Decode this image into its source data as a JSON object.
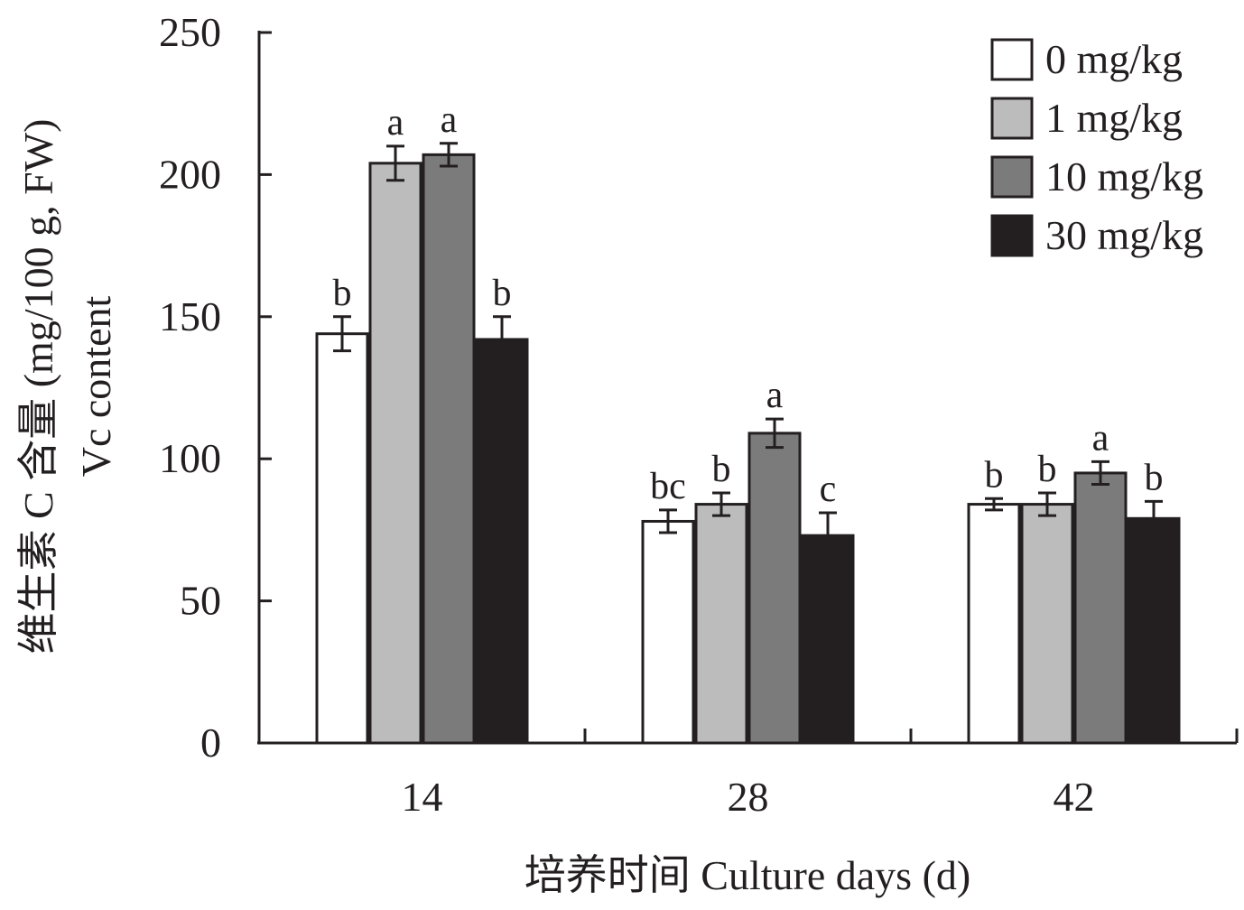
{
  "chart_data": {
    "type": "bar",
    "categories": [
      "14",
      "28",
      "42"
    ],
    "series": [
      {
        "name": "0 mg/kg",
        "color": "#ffffff",
        "values": [
          144,
          78,
          84
        ],
        "errors": [
          6,
          4,
          2
        ],
        "letters": [
          "b",
          "bc",
          "b"
        ]
      },
      {
        "name": "1 mg/kg",
        "color": "#bcbcbc",
        "values": [
          204,
          84,
          84
        ],
        "errors": [
          6,
          4,
          4
        ],
        "letters": [
          "a",
          "b",
          "b"
        ]
      },
      {
        "name": "10 mg/kg",
        "color": "#7b7b7b",
        "values": [
          207,
          109,
          95
        ],
        "errors": [
          4,
          5,
          4
        ],
        "letters": [
          "a",
          "a",
          "a"
        ]
      },
      {
        "name": "30 mg/kg",
        "color": "#231f20",
        "values": [
          142,
          73,
          79
        ],
        "errors": [
          8,
          8,
          6
        ],
        "letters": [
          "b",
          "c",
          "b"
        ]
      }
    ],
    "ylim": [
      0,
      250
    ],
    "yticks": [
      0,
      50,
      100,
      150,
      200,
      250
    ],
    "ylabel_cn": "维生素 C 含量 (mg/100 g, FW)",
    "ylabel_en": "Vc content",
    "xlabel": "培养时间 Culture days (d)",
    "grid": false,
    "legend_position": "top-right"
  }
}
